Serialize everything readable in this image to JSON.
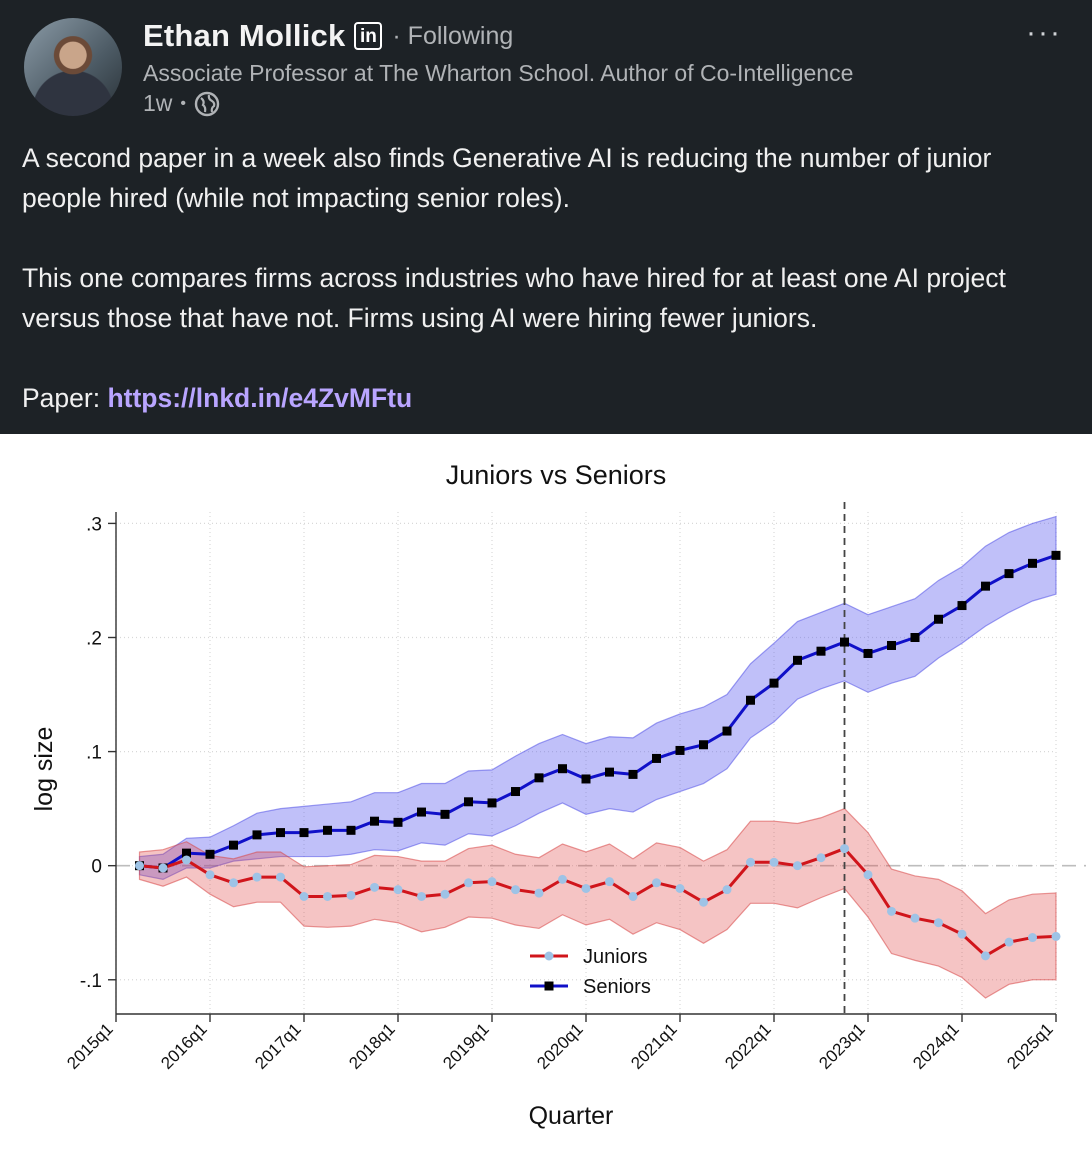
{
  "post": {
    "author_name": "Ethan Mollick",
    "linkedin_badge": "in",
    "follow_status": "· Following",
    "tagline": "Associate Professor at The Wharton School. Author of Co-Intelligence",
    "time": "1w",
    "time_sep": "•",
    "more": "···",
    "paragraph1": "A second paper in a week also finds Generative AI is reducing the number of junior people hired (while not impacting senior roles).",
    "paragraph2": "This one compares firms across industries who have hired for at least one AI project versus those that have not. Firms using AI were hiring fewer juniors.",
    "paper_label": "Paper: ",
    "paper_link": "https://lnkd.in/e4ZvMFtu"
  },
  "colors": {
    "juniors": "#d0151b",
    "seniors": "#1010c8",
    "link": "#b9a5ff",
    "background": "#1d2226"
  },
  "chart_data": {
    "type": "line",
    "title": "Juniors vs Seniors",
    "xlabel": "Quarter",
    "ylabel": "log size",
    "ylim": [
      -0.13,
      0.31
    ],
    "yticks": [
      -0.1,
      0,
      0.1,
      0.2,
      0.3
    ],
    "ytick_labels": [
      "-.1",
      "0",
      ".1",
      ".2",
      ".3"
    ],
    "xtick_labels": [
      "2015q1",
      "2016q1",
      "2017q1",
      "2018q1",
      "2019q1",
      "2020q1",
      "2021q1",
      "2022q1",
      "2023q1",
      "2024q1",
      "2025q1"
    ],
    "x_start_quarter": 0,
    "vline_quarter": 31,
    "legend": [
      "Juniors",
      "Seniors"
    ],
    "legend_position": "bottom-center",
    "series": [
      {
        "name": "Seniors",
        "values": [
          0,
          -0.002,
          0.011,
          0.01,
          0.018,
          0.027,
          0.029,
          0.029,
          0.031,
          0.031,
          0.039,
          0.038,
          0.047,
          0.045,
          0.056,
          0.055,
          0.065,
          0.077,
          0.085,
          0.076,
          0.082,
          0.08,
          0.094,
          0.101,
          0.106,
          0.118,
          0.145,
          0.16,
          0.18,
          0.188,
          0.196,
          0.186,
          0.193,
          0.2,
          0.216,
          0.228,
          0.245,
          0.256,
          0.265,
          0.272
        ],
        "ci_lower": [
          -0.008,
          -0.012,
          -0.002,
          -0.002,
          0.004,
          0.006,
          0.008,
          0.008,
          0.008,
          0.01,
          0.014,
          0.013,
          0.02,
          0.018,
          0.028,
          0.026,
          0.035,
          0.046,
          0.055,
          0.045,
          0.05,
          0.047,
          0.058,
          0.065,
          0.072,
          0.085,
          0.112,
          0.126,
          0.146,
          0.155,
          0.162,
          0.152,
          0.16,
          0.166,
          0.182,
          0.195,
          0.21,
          0.222,
          0.232,
          0.238
        ],
        "ci_upper": [
          0.008,
          0.01,
          0.024,
          0.025,
          0.035,
          0.046,
          0.05,
          0.052,
          0.054,
          0.056,
          0.064,
          0.064,
          0.072,
          0.072,
          0.083,
          0.084,
          0.096,
          0.107,
          0.115,
          0.107,
          0.113,
          0.112,
          0.125,
          0.133,
          0.139,
          0.15,
          0.177,
          0.195,
          0.214,
          0.222,
          0.23,
          0.22,
          0.227,
          0.234,
          0.25,
          0.262,
          0.28,
          0.292,
          0.3,
          0.306
        ]
      },
      {
        "name": "Juniors",
        "values": [
          0,
          -0.002,
          0.005,
          -0.008,
          -0.015,
          -0.01,
          -0.01,
          -0.027,
          -0.027,
          -0.026,
          -0.019,
          -0.021,
          -0.027,
          -0.025,
          -0.015,
          -0.014,
          -0.021,
          -0.024,
          -0.012,
          -0.02,
          -0.014,
          -0.027,
          -0.015,
          -0.02,
          -0.032,
          -0.021,
          0.003,
          0.003,
          0,
          0.007,
          0.015,
          -0.008,
          -0.04,
          -0.046,
          -0.05,
          -0.06,
          -0.079,
          -0.067,
          -0.063,
          -0.062
        ],
        "ci_lower": [
          -0.012,
          -0.018,
          -0.01,
          -0.025,
          -0.036,
          -0.032,
          -0.032,
          -0.053,
          -0.054,
          -0.053,
          -0.047,
          -0.05,
          -0.058,
          -0.054,
          -0.045,
          -0.046,
          -0.052,
          -0.055,
          -0.043,
          -0.052,
          -0.047,
          -0.06,
          -0.05,
          -0.056,
          -0.068,
          -0.056,
          -0.033,
          -0.033,
          -0.037,
          -0.028,
          -0.02,
          -0.045,
          -0.077,
          -0.083,
          -0.088,
          -0.098,
          -0.116,
          -0.104,
          -0.1,
          -0.1
        ],
        "ci_upper": [
          0.012,
          0.014,
          0.021,
          0.009,
          0.006,
          0.012,
          0.012,
          -0.001,
          0,
          0.001,
          0.009,
          0.008,
          0.004,
          0.004,
          0.015,
          0.018,
          0.01,
          0.007,
          0.019,
          0.012,
          0.019,
          0.006,
          0.02,
          0.016,
          0.004,
          0.014,
          0.039,
          0.039,
          0.037,
          0.042,
          0.05,
          0.029,
          -0.003,
          -0.009,
          -0.012,
          -0.022,
          -0.042,
          -0.03,
          -0.025,
          -0.024
        ]
      }
    ]
  }
}
